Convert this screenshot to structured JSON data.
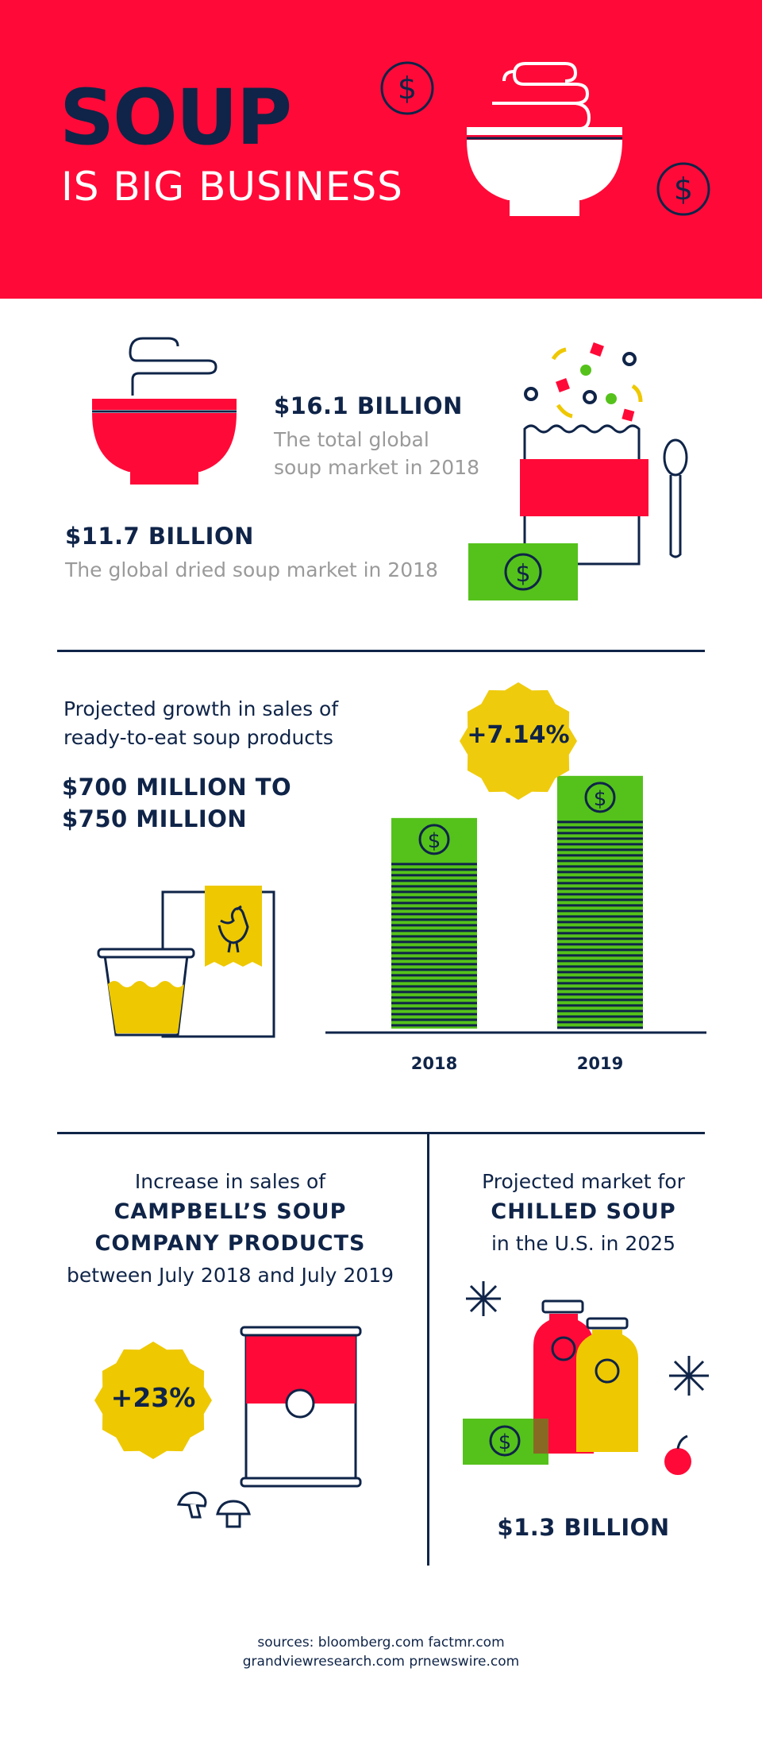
{
  "header": {
    "title_main": "SOUP",
    "title_sub": "IS BIG BUSINESS"
  },
  "market": {
    "total_value": "$16.1 BILLION",
    "total_desc_line1": "The total global",
    "total_desc_line2": "soup market in 2018",
    "dried_value": "$11.7 BILLION",
    "dried_desc": "The global dried soup market in 2018"
  },
  "ready_to_eat": {
    "label_line1": "Projected growth in sales of",
    "label_line2": "ready-to-eat soup products",
    "value_line1": "$700 MILLION TO",
    "value_line2": "$750 MILLION",
    "growth_badge": "+7.14%"
  },
  "chart_data": {
    "type": "bar",
    "categories": [
      "2018",
      "2019"
    ],
    "values": [
      700,
      750
    ],
    "ylabel": "",
    "xlabel": "",
    "annotation": "+7.14%"
  },
  "campbell": {
    "line1": "Increase in sales of",
    "line2": "CAMPBELL’S  SOUP",
    "line3": "COMPANY PRODUCTS",
    "line4": "between July 2018 and July 2019",
    "badge": "+23%"
  },
  "chilled": {
    "line1": "Projected market for",
    "line2": "CHILLED SOUP",
    "line3": "in the U.S. in 2025",
    "value": "$1.3 BILLION"
  },
  "sources": {
    "line1": "sources:   bloomberg.com   factmr.com",
    "line2": "grandviewresearch.com   prnewswire.com"
  },
  "colors": {
    "red": "#ff0a38",
    "navy": "#0f2448",
    "green": "#55c21b",
    "yellow": "#eec800",
    "grey": "#9a9a9a"
  }
}
